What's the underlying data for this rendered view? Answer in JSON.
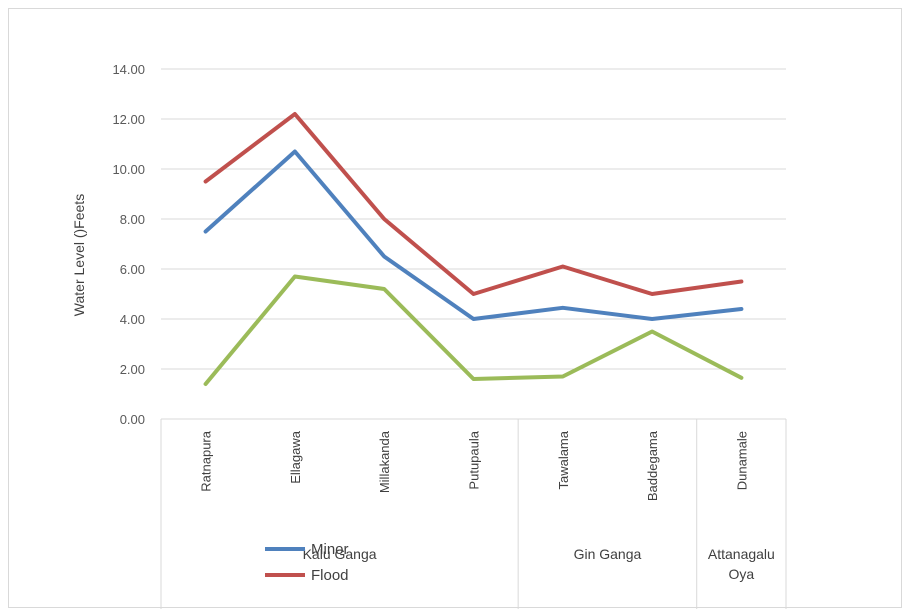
{
  "chart_data": {
    "type": "line",
    "title": "",
    "ylabel": "Water Level  ()Feets",
    "xlabel": "",
    "ylim": [
      0,
      14
    ],
    "ytick_step": 2,
    "ytick_labels": [
      "0.00",
      "2.00",
      "4.00",
      "6.00",
      "8.00",
      "10.00",
      "12.00",
      "14.00"
    ],
    "grid": true,
    "categories": [
      "Ratnapura",
      "Ellagawa",
      "Millakanda",
      "Putupaula",
      "Tawalama",
      "Baddegama",
      "Dunamale"
    ],
    "groups": [
      {
        "lines": [
          "Kalu Ganga"
        ],
        "span": 4
      },
      {
        "lines": [
          "Gin Ganga"
        ],
        "span": 2
      },
      {
        "lines": [
          "Attanagalu",
          "Oya"
        ],
        "span": 1
      }
    ],
    "series": [
      {
        "name": "",
        "color": "#c0504d",
        "values": [
          9.5,
          12.2,
          8.0,
          5.0,
          6.1,
          5.0,
          5.5
        ]
      },
      {
        "name": "",
        "color": "#4f81bd",
        "values": [
          7.5,
          10.7,
          6.5,
          4.0,
          4.45,
          4.0,
          4.4
        ]
      },
      {
        "name": "",
        "color": "#9bbb59",
        "values": [
          1.4,
          5.7,
          5.2,
          1.6,
          1.7,
          3.5,
          1.65
        ]
      }
    ],
    "legend": {
      "position": "bottom",
      "entries": [
        {
          "label": "Minor",
          "color": "#4f81bd"
        },
        {
          "label": "Flood",
          "color": "#c0504d"
        }
      ]
    }
  }
}
